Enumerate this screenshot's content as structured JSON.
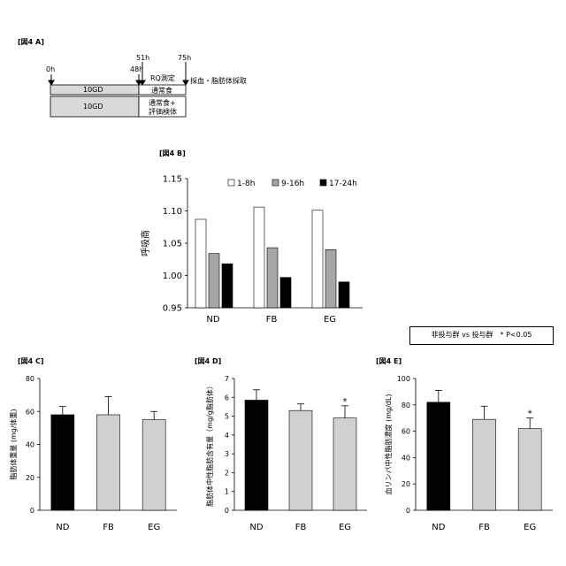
{
  "panelA": {
    "title": "[図4 A]",
    "time_labels": [
      "0h",
      "48h",
      "51h",
      "75h"
    ],
    "rq_label": "RQ測定",
    "sample_label": "採血・脂肪体採取",
    "row1_left": "10GD",
    "row1_right": "通常食",
    "row2_left": "10GD",
    "row2_right_line1": "通常食+",
    "row2_right_line2": "評価検体"
  },
  "note": "非投与群 vs 投与群　* P<0.05",
  "chart_data": [
    {
      "id": "B",
      "title": "[図4 B]",
      "type": "bar",
      "ylabel": "呼吸商",
      "categories": [
        "ND",
        "FB",
        "EG"
      ],
      "ylim": [
        0.95,
        1.15
      ],
      "yticks": [
        "0.95",
        "1.00",
        "1.05",
        "1.10",
        "1.15"
      ],
      "legend_position": "top",
      "series": [
        {
          "name": "1-8h",
          "values": [
            1.087,
            1.106,
            1.101
          ],
          "color": "#ffffff"
        },
        {
          "name": "9-16h",
          "values": [
            1.034,
            1.043,
            1.04
          ],
          "color": "#a6a6a6"
        },
        {
          "name": "17-24h",
          "values": [
            1.018,
            0.997,
            0.99
          ],
          "color": "#000000"
        }
      ]
    },
    {
      "id": "C",
      "title": "[図4 C]",
      "type": "bar",
      "ylabel": "脂肪体重量 (mg/体重)",
      "categories": [
        "ND",
        "FB",
        "EG"
      ],
      "ylim": [
        0,
        80
      ],
      "yticks": [
        "0",
        "20",
        "40",
        "60",
        "80"
      ],
      "values": [
        58,
        58,
        55
      ],
      "errors": [
        5,
        11,
        5
      ],
      "colors": [
        "#000000",
        "#d0d0d0",
        "#d0d0d0"
      ],
      "significance": [
        "",
        "",
        ""
      ]
    },
    {
      "id": "D",
      "title": "[図4 D]",
      "type": "bar",
      "ylabel": "脂肪体中性脂肪含有量（mg/g脂肪体）",
      "categories": [
        "ND",
        "FB",
        "EG"
      ],
      "ylim": [
        0,
        7
      ],
      "yticks": [
        "0",
        "1",
        "2",
        "3",
        "4",
        "5",
        "6",
        "7"
      ],
      "values": [
        5.85,
        5.3,
        4.9
      ],
      "errors": [
        0.55,
        0.35,
        0.65
      ],
      "colors": [
        "#000000",
        "#d0d0d0",
        "#d0d0d0"
      ],
      "significance": [
        "",
        "",
        "*"
      ]
    },
    {
      "id": "E",
      "title": "[図4 E]",
      "type": "bar",
      "ylabel": "血リンパ中性脂肪濃度 (mg/dL)",
      "categories": [
        "ND",
        "FB",
        "EG"
      ],
      "ylim": [
        0,
        100
      ],
      "yticks": [
        "0",
        "20",
        "40",
        "60",
        "80",
        "100"
      ],
      "values": [
        82,
        69,
        62
      ],
      "errors": [
        9,
        10,
        8
      ],
      "colors": [
        "#000000",
        "#d0d0d0",
        "#d0d0d0"
      ],
      "significance": [
        "",
        "",
        "*"
      ]
    }
  ]
}
